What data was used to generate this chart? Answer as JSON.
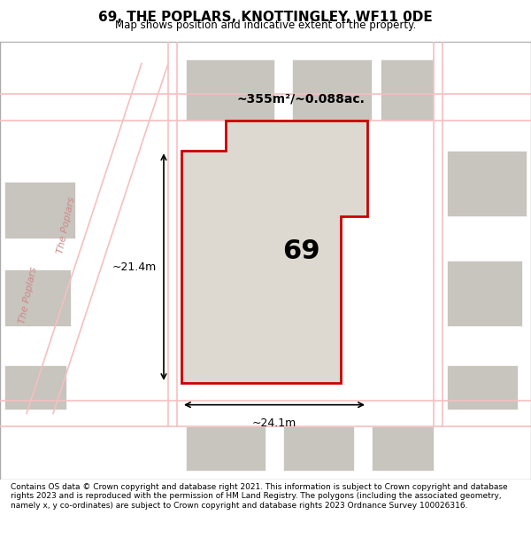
{
  "title": "69, THE POPLARS, KNOTTINGLEY, WF11 0DE",
  "subtitle": "Map shows position and indicative extent of the property.",
  "footer": "Contains OS data © Crown copyright and database right 2021. This information is subject to Crown copyright and database rights 2023 and is reproduced with the permission of HM Land Registry. The polygons (including the associated geometry, namely x, y co-ordinates) are subject to Crown copyright and database rights 2023 Ordnance Survey 100026316.",
  "map_bg": "#f0ece8",
  "plot_bg": "#e8e4df",
  "highlight_color": "#d8d0c8",
  "road_color": "#f5c0c0",
  "red_outline": "#cc0000",
  "gray_block": "#c8c4be",
  "area_text": "~355m²/~0.088ac.",
  "number_text": "69",
  "dim_width": "~24.1m",
  "dim_height": "~21.4m",
  "road_label1": "The Poplars",
  "road_label2": "The Poplars"
}
